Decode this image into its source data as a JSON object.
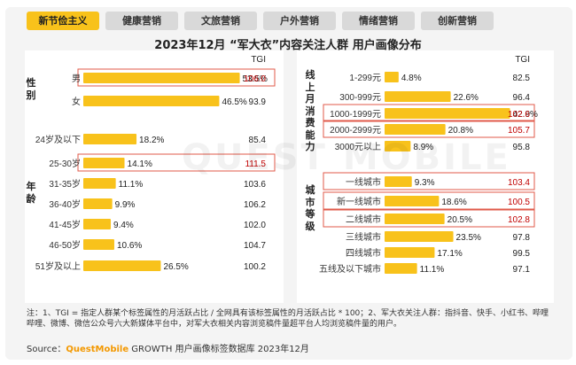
{
  "tabs": [
    {
      "label": "新节俭主义",
      "active": true
    },
    {
      "label": "健康营销",
      "active": false
    },
    {
      "label": "文旅营销",
      "active": false
    },
    {
      "label": "户外营销",
      "active": false
    },
    {
      "label": "情绪营销",
      "active": false
    },
    {
      "label": "创新营销",
      "active": false
    }
  ],
  "title": "2023年12月 “军大衣”内容关注人群 用户画像分布",
  "watermark": "QUEST MOBILE",
  "colors": {
    "bar": "#f8c21b",
    "highlight_box": "#e05a4a",
    "highlight_text": "#c00000",
    "tab_active": "#f8c21b"
  },
  "chart_data": [
    {
      "type": "bar",
      "orientation": "horizontal",
      "tgi_header": "TGI",
      "groups": [
        {
          "name": "性别",
          "categories": [
            "男",
            "女"
          ],
          "values": [
            53.5,
            46.5
          ],
          "labels": [
            "53.5%",
            "46.5%"
          ],
          "tgi": [
            "106.0",
            "93.9"
          ],
          "highlighted": [
            true,
            false
          ]
        },
        {
          "name": "年龄",
          "categories": [
            "24岁及以下",
            "25-30岁",
            "31-35岁",
            "36-40岁",
            "41-45岁",
            "46-50岁",
            "51岁及以上"
          ],
          "values": [
            18.2,
            14.1,
            11.1,
            9.9,
            9.4,
            10.6,
            26.5
          ],
          "labels": [
            "18.2%",
            "14.1%",
            "11.1%",
            "9.9%",
            "9.4%",
            "10.6%",
            "26.5%"
          ],
          "tgi": [
            "85.4",
            "111.5",
            "103.6",
            "106.2",
            "102.0",
            "104.7",
            "100.2"
          ],
          "highlighted": [
            false,
            true,
            false,
            false,
            false,
            false,
            false
          ]
        }
      ]
    },
    {
      "type": "bar",
      "orientation": "horizontal",
      "tgi_header": "TGI",
      "groups": [
        {
          "name": "线上月消费能力",
          "categories": [
            "1-299元",
            "300-999元",
            "1000-1999元",
            "2000-2999元",
            "3000元以上"
          ],
          "values": [
            4.8,
            22.6,
            42.9,
            20.8,
            8.9
          ],
          "labels": [
            "4.8%",
            "22.6%",
            "42.9%",
            "20.8%",
            "8.9%"
          ],
          "tgi": [
            "82.5",
            "96.4",
            "102.6",
            "105.7",
            "95.8"
          ],
          "highlighted": [
            false,
            false,
            true,
            true,
            false
          ]
        },
        {
          "name": "城市等级",
          "categories": [
            "一线城市",
            "新一线城市",
            "二线城市",
            "三线城市",
            "四线城市",
            "五线及以下城市"
          ],
          "values": [
            9.3,
            18.6,
            20.5,
            23.5,
            17.1,
            11.1
          ],
          "labels": [
            "9.3%",
            "18.6%",
            "20.5%",
            "23.5%",
            "17.1%",
            "11.1%"
          ],
          "tgi": [
            "103.4",
            "100.5",
            "102.8",
            "97.8",
            "99.5",
            "97.1"
          ],
          "highlighted": [
            true,
            true,
            true,
            false,
            false,
            false
          ]
        }
      ]
    }
  ],
  "note": "注：1、TGI = 指定人群某个标签属性的月活跃占比 / 全网具有该标签属性的月活跃占比 * 100；2、军大衣关注人群：指抖音、快手、小红书、哔哩哔哩、微博、微信公众号六大新媒体平台中，对军大衣相关内容浏览稿件量超平台人均浏览稿件量的用户。",
  "source": {
    "prefix": "Source：",
    "brand": "QuestMobile",
    "rest": " GROWTH 用户画像标签数据库 2023年12月"
  }
}
